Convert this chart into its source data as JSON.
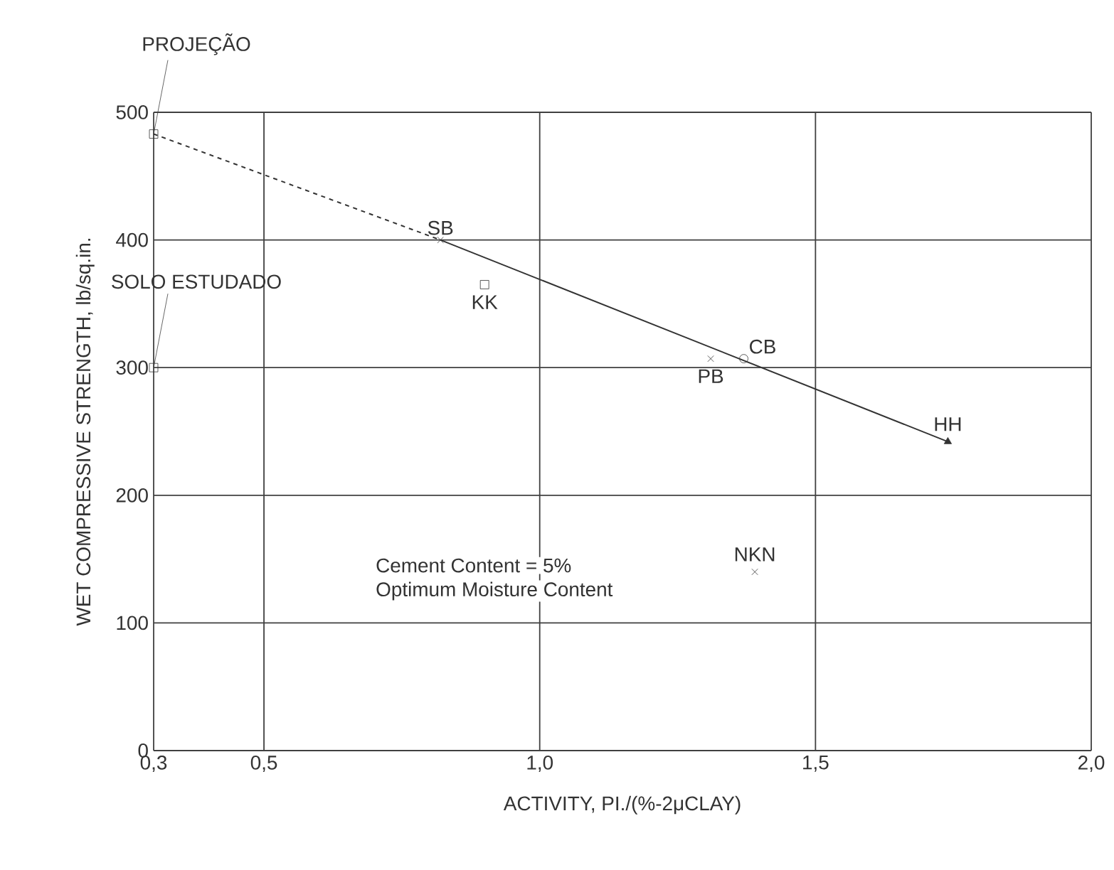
{
  "chart_data": {
    "type": "scatter",
    "xlabel": "ACTIVITY, PI./(%-2μCLAY)",
    "ylabel": "WET COMPRESSIVE STRENGTH, lb/sq.in.",
    "xlim": [
      0.3,
      2.0
    ],
    "ylim": [
      0,
      500
    ],
    "xticks": [
      {
        "value": 0.3,
        "label": "0,3"
      },
      {
        "value": 0.5,
        "label": "0,5"
      },
      {
        "value": 1.0,
        "label": "1,0"
      },
      {
        "value": 1.5,
        "label": "1,5"
      },
      {
        "value": 2.0,
        "label": "2,0"
      }
    ],
    "yticks": [
      0,
      100,
      200,
      300,
      400,
      500
    ],
    "grid": true,
    "annotations": [
      {
        "text": "PROJEÇÃO",
        "x": 0.3,
        "y": 483
      },
      {
        "text": "SOLO ESTUDADO",
        "x": 0.3,
        "y": 300
      },
      "Cement Content = 5%",
      "Optimum Moisture Content"
    ],
    "series": [
      {
        "type": "line",
        "color": "#333333",
        "x": [
          0.3,
          0.82
        ],
        "values": [
          483,
          400
        ],
        "line_style": "dashed",
        "marker": "none"
      },
      {
        "type": "line",
        "color": "#333333",
        "x": [
          0.82,
          1.74
        ],
        "values": [
          400,
          242
        ],
        "line_style": "solid",
        "marker": "none"
      },
      {
        "color": "#333333",
        "x": [
          0.3,
          0.3
        ],
        "values": [
          483,
          300
        ],
        "marker": "square"
      },
      {
        "name": "SB",
        "color": "#333333",
        "x": [
          0.82
        ],
        "values": [
          400
        ],
        "marker": "cross"
      },
      {
        "name": "KK",
        "color": "#333333",
        "x": [
          0.9
        ],
        "values": [
          365
        ],
        "marker": "square"
      },
      {
        "name": "PB",
        "color": "#333333",
        "x": [
          1.31
        ],
        "values": [
          307
        ],
        "marker": "cross"
      },
      {
        "name": "CB",
        "color": "#333333",
        "x": [
          1.37
        ],
        "values": [
          307
        ],
        "marker": "circle"
      },
      {
        "name": "HH",
        "color": "#333333",
        "x": [
          1.74
        ],
        "values": [
          242
        ],
        "marker": "triangle"
      },
      {
        "name": "NKN",
        "color": "#333333",
        "x": [
          1.39
        ],
        "values": [
          140
        ],
        "marker": "cross"
      }
    ]
  }
}
